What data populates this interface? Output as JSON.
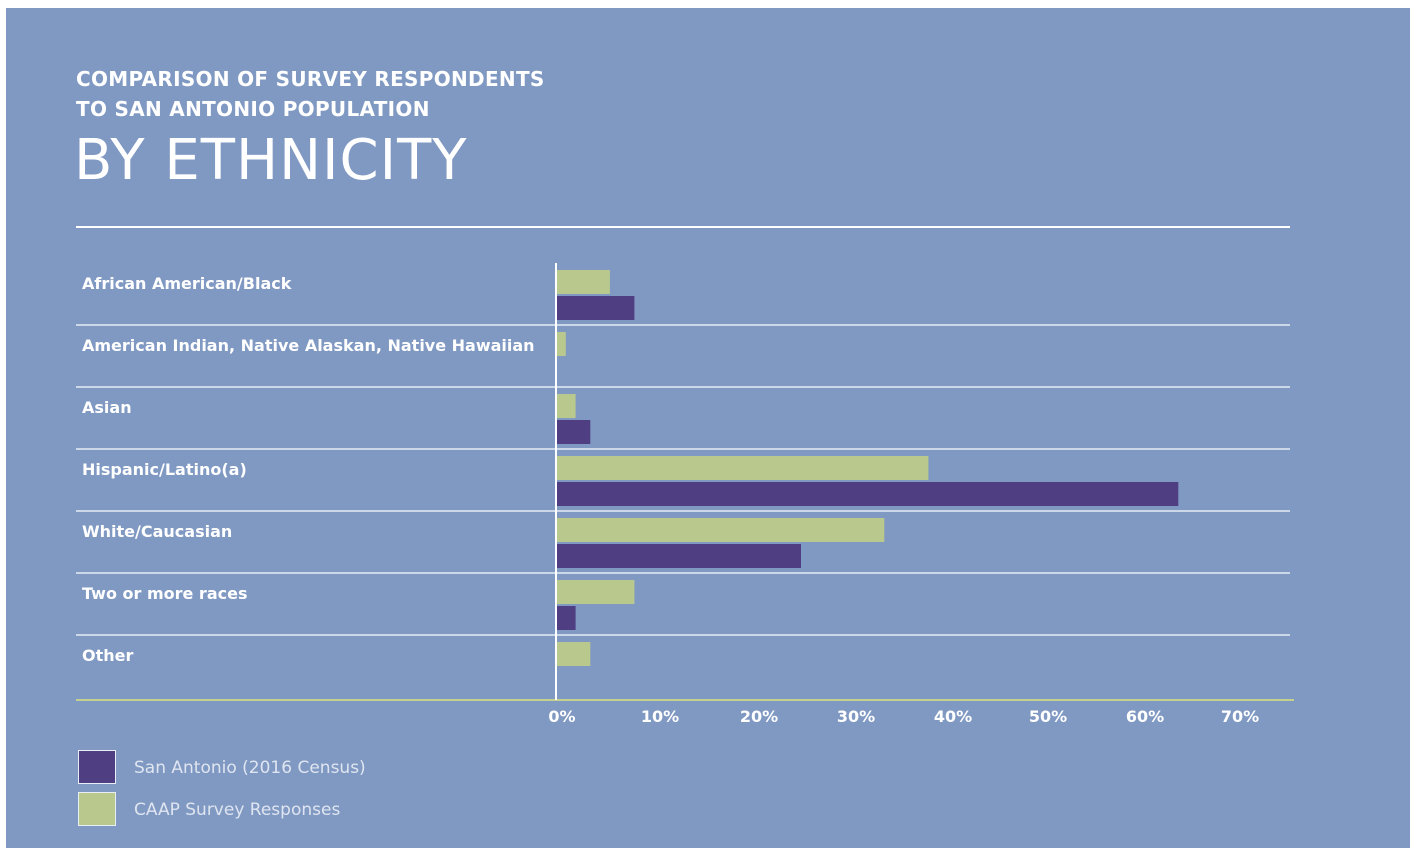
{
  "header": {
    "super_line1": "COMPARISON OF SURVEY RESPONDENTS",
    "super_line2": "TO SAN ANTONIO POPULATION",
    "title": "BY ETHNICITY"
  },
  "colors": {
    "background": "#8099c3",
    "census": "#4f3e82",
    "survey": "#b9c98e",
    "gridline": "#e6ecf5",
    "baseline": "#c4d08e"
  },
  "chart_data": {
    "type": "bar",
    "orientation": "horizontal",
    "categories": [
      "African American/Black",
      "American Indian, Native Alaskan, Native Hawaiian",
      "Asian",
      "Hispanic/Latino(a)",
      "White/Caucasian",
      "Two or more races",
      "Other"
    ],
    "series": [
      {
        "name": "CAAP Survey Responses",
        "color": "#b9c98e",
        "values": [
          5.5,
          1,
          2,
          38,
          33.5,
          8,
          3.5
        ]
      },
      {
        "name": "San Antonio (2016 Census)",
        "color": "#4f3e82",
        "values": [
          8,
          0,
          3.5,
          63.5,
          25,
          2,
          0
        ]
      }
    ],
    "x_ticks": [
      "0%",
      "10%",
      "20%",
      "30%",
      "40%",
      "50%",
      "60%",
      "70%"
    ],
    "xlim": [
      0,
      70
    ],
    "legend_position": "bottom-left",
    "grid": "horizontal separators"
  },
  "legend": {
    "census_label": "San Antonio (2016 Census)",
    "survey_label": "CAAP Survey Responses"
  }
}
